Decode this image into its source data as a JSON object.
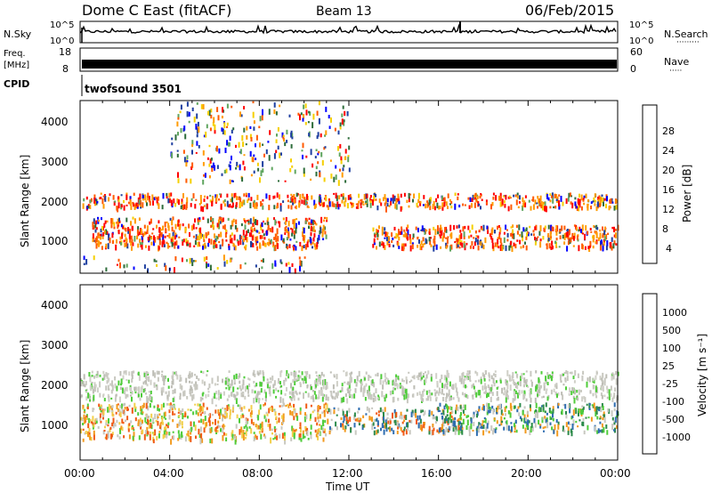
{
  "header": {
    "title": "Dome C East (fitACF)",
    "beam": "Beam 13",
    "date": "06/Feb/2015"
  },
  "top_panels": {
    "nsky_label": "N.Sky",
    "nsky_ticks": [
      "10^5",
      "10^0"
    ],
    "nsearch_label": "N.Search",
    "freq_label_1": "Freq.",
    "freq_label_2": "[MHz]",
    "freq_ticks": [
      "18",
      "8"
    ],
    "nave_label": "Nave",
    "nave_ticks": [
      "60",
      "0"
    ],
    "cpid_label": "CPID",
    "cpid_value": "twofsound 3501"
  },
  "power_panel": {
    "ylabel": "Slant Range [km]",
    "yticks": [
      "4000",
      "3000",
      "2000",
      "1000"
    ],
    "colorbar_label": "Power [dB]",
    "colorbar_ticks": [
      "28",
      "24",
      "20",
      "16",
      "12",
      "8",
      "4"
    ],
    "colorbar_colors": [
      "#ff0000",
      "#ff5a00",
      "#ff9b00",
      "#f5cf00",
      "#5fa55f",
      "#2d6c3a",
      "#1f3fa0",
      "#0000ff"
    ]
  },
  "velocity_panel": {
    "ylabel": "Slant Range [km]",
    "yticks": [
      "4000",
      "3000",
      "2000",
      "1000"
    ],
    "colorbar_label": "Velocity [m s⁻¹]",
    "colorbar_ticks": [
      "1000",
      "500",
      "100",
      "25",
      "-25",
      "-100",
      "-500",
      "-1000"
    ],
    "colorbar_colors": [
      "#1b3fa8",
      "#2f6db0",
      "#2c8a4a",
      "#4fcc3a",
      "#c8c8c0",
      "#f2cf4a",
      "#f29a1e",
      "#f05a14",
      "#e00000"
    ]
  },
  "x_axis": {
    "label": "Time UT",
    "ticks": [
      "00:00",
      "04:00",
      "08:00",
      "12:00",
      "16:00",
      "20:00",
      "00:00"
    ]
  },
  "chart_data": {
    "type": "heatmap",
    "title": "Dome C East (fitACF)",
    "subtitle": "Beam 13",
    "date": "06/Feb/2015",
    "xlabel": "Time UT",
    "ylabel": "Slant Range [km]",
    "x_ticks": [
      "00:00",
      "04:00",
      "08:00",
      "12:00",
      "16:00",
      "20:00",
      "00:00"
    ],
    "xlim_hours": [
      0,
      24
    ],
    "ylim_km": [
      180,
      4500
    ],
    "y_ticks": [
      1000,
      2000,
      3000,
      4000
    ],
    "panels": [
      {
        "name": "Power",
        "unit": "dB",
        "color_ticks": [
          4,
          8,
          12,
          16,
          20,
          24,
          28
        ],
        "bands": [
          {
            "hours": [
              0,
              24
            ],
            "range_km": [
              1850,
              2200
            ],
            "level": "18-28 dB"
          },
          {
            "hours": [
              0.5,
              11
            ],
            "range_km": [
              850,
              1600
            ],
            "level": "16-28 dB"
          },
          {
            "hours": [
              13,
              24
            ],
            "range_km": [
              850,
              1400
            ],
            "level": "14-28 dB"
          },
          {
            "hours": [
              0,
              10
            ],
            "range_km": [
              300,
              650
            ],
            "level": "4-16 dB"
          },
          {
            "hours": [
              4,
              12
            ],
            "range_km": [
              2500,
              4500
            ],
            "level": "4-16 dB"
          }
        ]
      },
      {
        "name": "Velocity",
        "unit": "m s⁻¹",
        "color_ticks": [
          1000,
          500,
          100,
          25,
          -25,
          -100,
          -500,
          -1000
        ],
        "bands": [
          {
            "hours": [
              0,
              24
            ],
            "range_km": [
              1700,
              2400
            ],
            "level": "-25 to 25"
          },
          {
            "hours": [
              0,
              11
            ],
            "range_km": [
              700,
              1600
            ],
            "level": "-100 to -500"
          },
          {
            "hours": [
              11,
              17
            ],
            "range_km": [
              900,
              1500
            ],
            "level": "-100 to -500"
          },
          {
            "hours": [
              16,
              24
            ],
            "range_km": [
              900,
              1600
            ],
            "level": "25 to 500"
          }
        ]
      }
    ]
  }
}
